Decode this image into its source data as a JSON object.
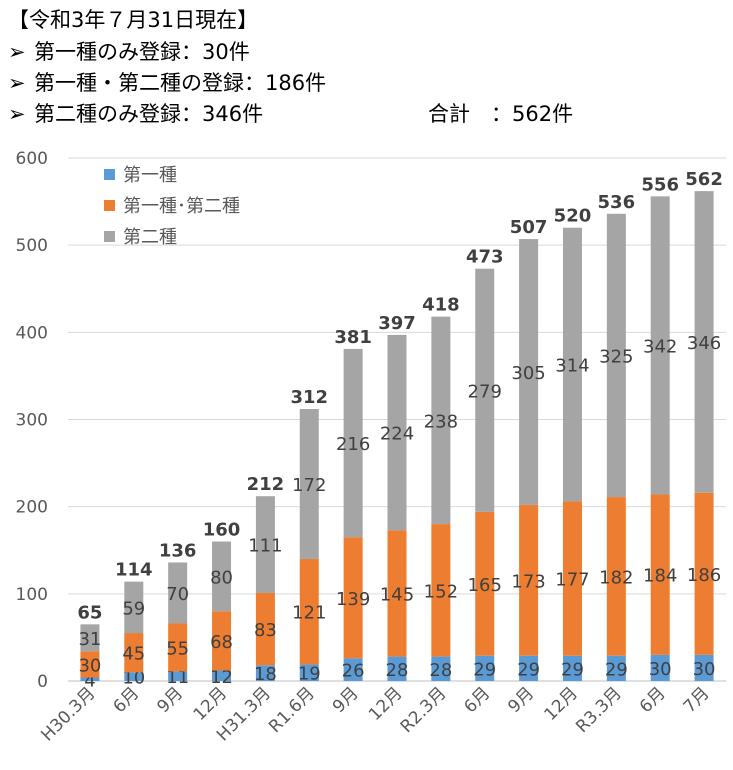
{
  "header": {
    "date_line": "【令和3年７月31日現在】",
    "bullet_icon": "arrowhead-bullet",
    "lines": [
      "第一種のみ登録：30件",
      "第一種・第二種の登録：186件",
      "第二種のみ登録：346件"
    ],
    "total": "合計　：562件"
  },
  "chart_data": {
    "type": "bar",
    "stacked": true,
    "categories": [
      "H30.3月",
      "6月",
      "9月",
      "12月",
      "H31.3月",
      "R1.6月",
      "9月",
      "12月",
      "R2.3月",
      "6月",
      "9月",
      "12月",
      "R3.3月",
      "6月",
      "7月"
    ],
    "series": [
      {
        "name": "第一種",
        "color": "#5b9bd5",
        "values": [
          4,
          10,
          11,
          12,
          18,
          19,
          26,
          28,
          28,
          29,
          29,
          29,
          29,
          30,
          30
        ]
      },
      {
        "name": "第一種･第二種",
        "color": "#ed7d31",
        "values": [
          30,
          45,
          55,
          68,
          83,
          121,
          139,
          145,
          152,
          165,
          173,
          177,
          182,
          184,
          186
        ]
      },
      {
        "name": "第二種",
        "color": "#a5a5a5",
        "values": [
          31,
          59,
          70,
          80,
          111,
          172,
          216,
          224,
          238,
          279,
          305,
          314,
          325,
          342,
          346
        ]
      }
    ],
    "totals": [
      65,
      114,
      136,
      160,
      212,
      312,
      381,
      397,
      418,
      473,
      507,
      520,
      536,
      556,
      562
    ],
    "ylim": [
      0,
      600
    ],
    "yticks": [
      0,
      100,
      200,
      300,
      400,
      500,
      600
    ],
    "grid": true,
    "legend": "top-left",
    "title": "",
    "xlabel": "",
    "ylabel": ""
  }
}
